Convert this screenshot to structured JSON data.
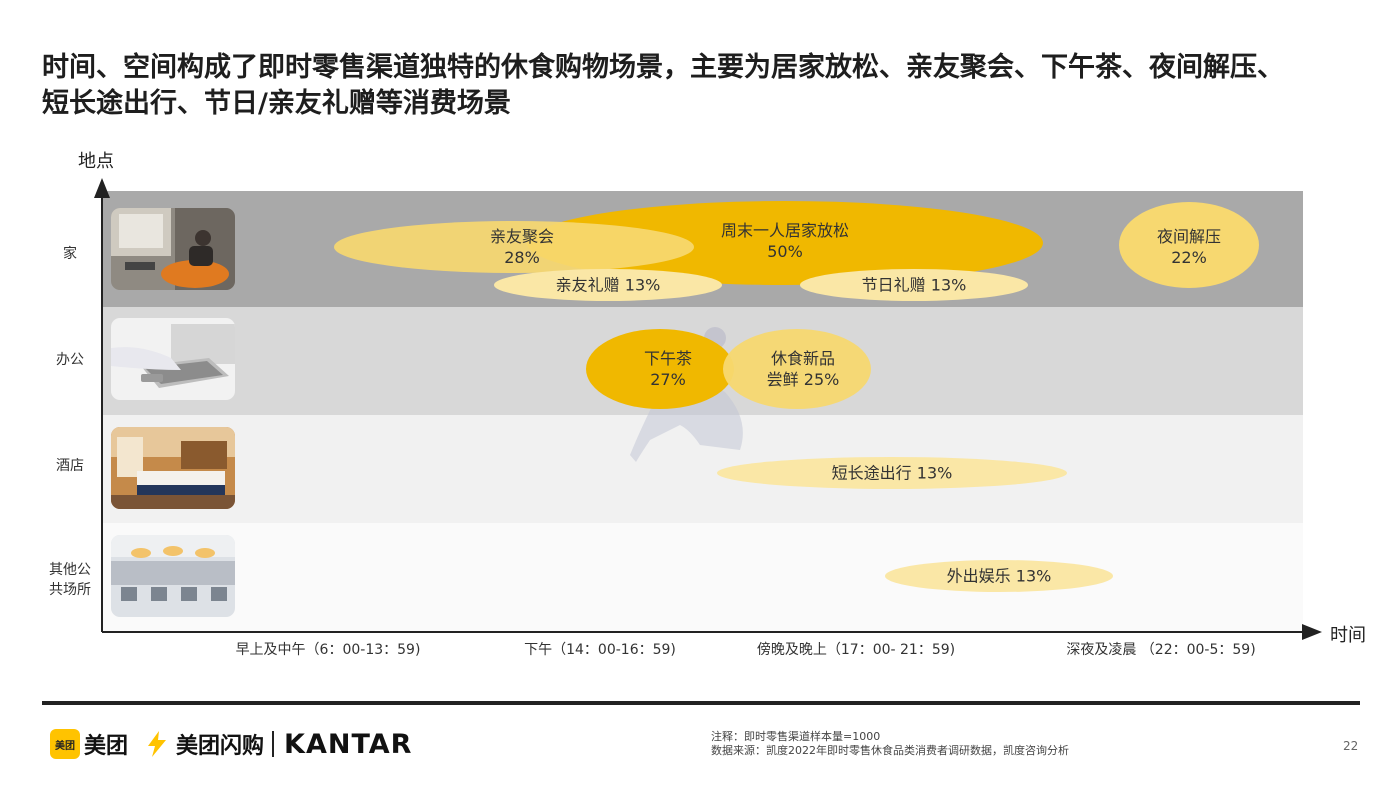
{
  "headline": {
    "line1": "时间、空间构成了即时零售渠道独特的休食购物场景，主要为居家放松、亲友聚会、下午茶、夜间解压、",
    "line2": "短长途出行、节日/亲友礼赠等消费场景"
  },
  "chart_data": {
    "type": "bubble",
    "y_axis_label": "地点",
    "x_axis_label": "时间",
    "rows": [
      {
        "label_line1": "家",
        "label_line2": "",
        "image": "home-relax-photo",
        "band_color": "#a9a9a9"
      },
      {
        "label_line1": "办公",
        "label_line2": "",
        "image": "office-laptop-photo",
        "band_color": "#d8d8d8"
      },
      {
        "label_line1": "酒店",
        "label_line2": "",
        "image": "hotel-room-photo",
        "band_color": "#f1f1f1"
      },
      {
        "label_line1": "其他公",
        "label_line2": "共场所",
        "image": "public-space-photo",
        "band_color": "#fafafa"
      }
    ],
    "time_slots": [
      "早上及中午（6：00-13：59)",
      "下午（14：00-16：59)",
      "傍晚及晚上（17：00- 21：59)",
      "深夜及凌晨 （22：00-5：59)"
    ],
    "scenes": [
      {
        "name": "周末一人居家放松",
        "value": 50,
        "label": "50%",
        "location": "家",
        "time": "下午～傍晚及晚上",
        "color": "#f0b800"
      },
      {
        "name": "亲友聚会",
        "value": 28,
        "label": "28%",
        "location": "家",
        "time": "早上及中午～下午",
        "color": "#f7d870"
      },
      {
        "name": "夜间解压",
        "value": 22,
        "label": "22%",
        "location": "家",
        "time": "深夜及凌晨",
        "color": "#f7d870"
      },
      {
        "name": "亲友礼赠",
        "value": 13,
        "label": "13%",
        "location": "家",
        "time": "下午",
        "color": "#fae7a6"
      },
      {
        "name": "节日礼赠",
        "value": 13,
        "label": "13%",
        "location": "家",
        "time": "傍晚及晚上",
        "color": "#fae7a6"
      },
      {
        "name": "下午茶",
        "value": 27,
        "label": "27%",
        "location": "办公",
        "time": "下午",
        "color": "#f0b800"
      },
      {
        "name": "休食新品尝鲜",
        "value": 25,
        "label": "25%",
        "location": "办公",
        "time": "下午～傍晚及晚上",
        "color": "#f7d870"
      },
      {
        "name": "短长途出行",
        "value": 13,
        "label": "13%",
        "location": "酒店",
        "time": "傍晚及晚上～深夜及凌晨",
        "color": "#fae7a6"
      },
      {
        "name": "外出娱乐",
        "value": 13,
        "label": "13%",
        "location": "其他公共场所",
        "time": "傍晚及晚上～深夜及凌晨",
        "color": "#fae7a6"
      }
    ]
  },
  "bubble_labels": {
    "zhoumo": {
      "line1": "周末一人居家放松",
      "line2": "50%"
    },
    "qinyou": {
      "line1": "亲友聚会",
      "line2": "28%"
    },
    "yejian": {
      "line1": "夜间解压",
      "line2": "22%"
    },
    "lizeng": {
      "line1": "亲友礼赠 13%"
    },
    "jieri": {
      "line1": "节日礼赠 13%"
    },
    "xiawucha": {
      "line1": "下午茶",
      "line2": "27%"
    },
    "xinpin": {
      "line1": "休食新品",
      "line2": "尝鲜 25%"
    },
    "chuxing": {
      "line1": "短长途出行 13%"
    },
    "yule": {
      "line1": "外出娱乐 13%"
    }
  },
  "footer": {
    "logo1_box": "美团",
    "logo1_text": "美团",
    "logo2_text": "美团闪购",
    "logo3_text": "KANTAR",
    "note_line1": "注释：即时零售渠道样本量=1000",
    "note_line2": "数据来源：凯度2022年即时零售休食品类消费者调研数据，凯度咨询分析",
    "page_number": "22"
  }
}
